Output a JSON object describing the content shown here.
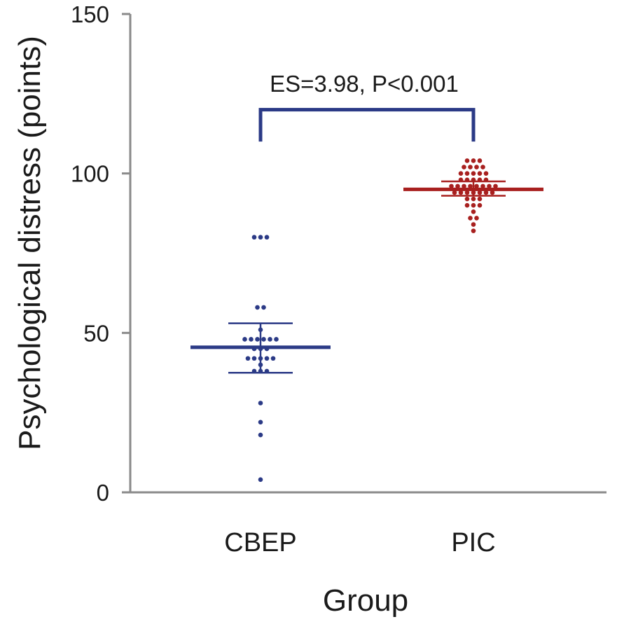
{
  "chart_data": {
    "type": "scatter",
    "ylabel": "Psychological distress (points)",
    "xlabel": "Group",
    "ylim": [
      0,
      150
    ],
    "yticks": [
      0,
      50,
      100,
      150
    ],
    "grid": false,
    "categories": [
      "CBEP",
      "PIC"
    ],
    "colors": {
      "CBEP": "#2b3a86",
      "PIC": "#a8201f",
      "axis": "#8a8a8a",
      "bracket": "#2b3a86"
    },
    "groups": [
      {
        "name": "CBEP",
        "mean": 45.5,
        "error_low": 37.5,
        "error_high": 53,
        "points": [
          80,
          80,
          80,
          58,
          58,
          51,
          48,
          48,
          48,
          48,
          48,
          48,
          45,
          45,
          45,
          42,
          42,
          42,
          42,
          42,
          40,
          38,
          38,
          38,
          28,
          22,
          18,
          4
        ]
      },
      {
        "name": "PIC",
        "mean": 95,
        "error_low": 93,
        "error_high": 97.5,
        "points": [
          104,
          104,
          104,
          102,
          102,
          102,
          102,
          100,
          100,
          100,
          100,
          100,
          98,
          98,
          98,
          98,
          98,
          96,
          96,
          96,
          96,
          96,
          96,
          96,
          96,
          94,
          94,
          94,
          94,
          94,
          94,
          94,
          92,
          92,
          92,
          90,
          90,
          90,
          88,
          86,
          86,
          84,
          82
        ]
      }
    ],
    "annotation": {
      "text": "ES=3.98, P<0.001",
      "bracket_y": 120,
      "bracket_drop_to": 110
    }
  }
}
